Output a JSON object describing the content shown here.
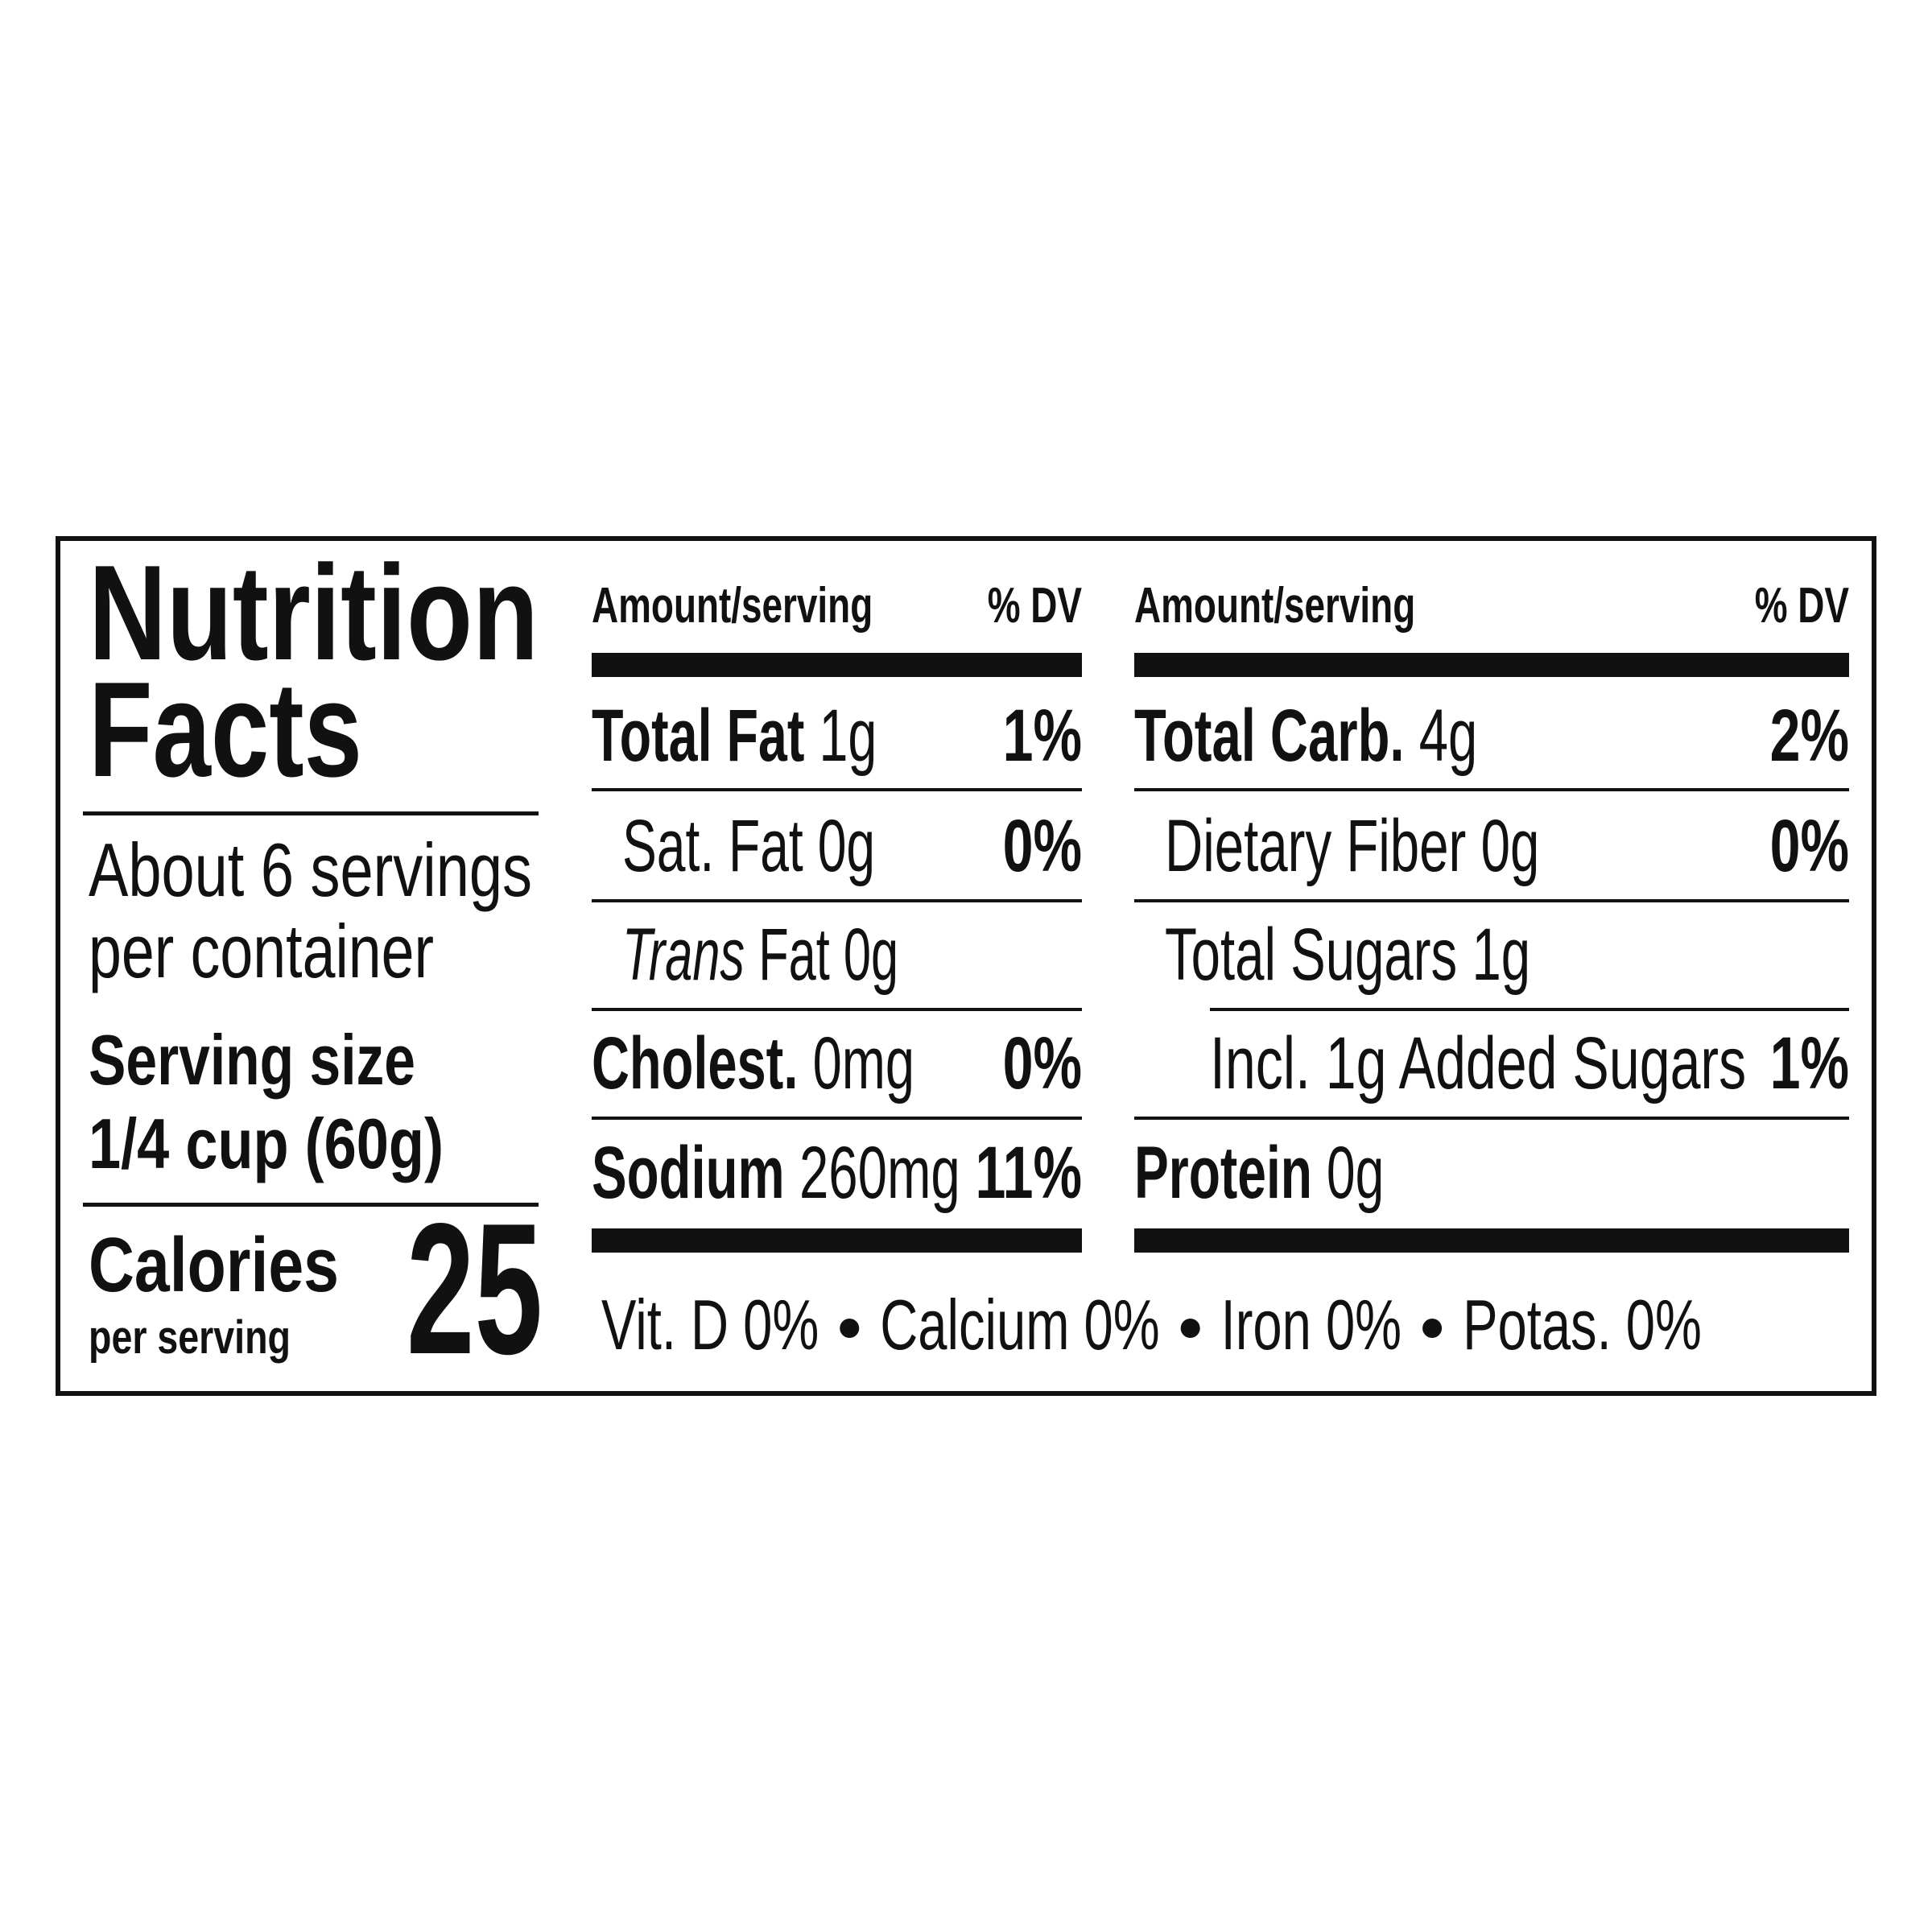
{
  "title": [
    "Nutrition",
    "Facts"
  ],
  "servings": [
    "About 6 servings",
    "per container"
  ],
  "serving_size": [
    "Serving size",
    "1/4 cup (60g)"
  ],
  "calories": {
    "label": "Calories",
    "sublabel": "per serving",
    "value": 25
  },
  "columns": [
    {
      "header": {
        "amount": "Amount/serving",
        "dv": "% DV"
      },
      "rows": [
        {
          "name": "Total Fat",
          "amount": "1g",
          "dv": "1%",
          "bold": true,
          "indent": 0
        },
        {
          "name": "Sat. Fat",
          "amount": "0g",
          "dv": "0%",
          "bold": false,
          "indent": 1
        },
        {
          "italic": "Trans",
          "name": "Fat",
          "amount": "0g",
          "bold": false,
          "indent": 1
        },
        {
          "name": "Cholest.",
          "amount": "0mg",
          "dv": "0%",
          "bold": true,
          "indent": 0
        },
        {
          "name": "Sodium",
          "amount": "260mg",
          "dv": "11%",
          "bold": true,
          "indent": 0
        }
      ]
    },
    {
      "header": {
        "amount": "Amount/serving",
        "dv": "% DV"
      },
      "rows": [
        {
          "name": "Total Carb.",
          "amount": "4g",
          "dv": "2%",
          "bold": true,
          "indent": 0
        },
        {
          "name": "Dietary Fiber",
          "amount": "0g",
          "dv": "0%",
          "bold": false,
          "indent": 1
        },
        {
          "name": "Total Sugars",
          "amount": "1g",
          "bold": false,
          "indent": 1
        },
        {
          "name": "Incl. 1g Added Sugars",
          "dv": "1%",
          "bold": false,
          "indent": 2
        },
        {
          "name": "Protein",
          "amount": "0g",
          "bold": true,
          "indent": 0
        }
      ]
    }
  ],
  "footer": [
    "Vit. D 0%",
    "Calcium 0%",
    "Iron 0%",
    "Potas. 0%"
  ]
}
